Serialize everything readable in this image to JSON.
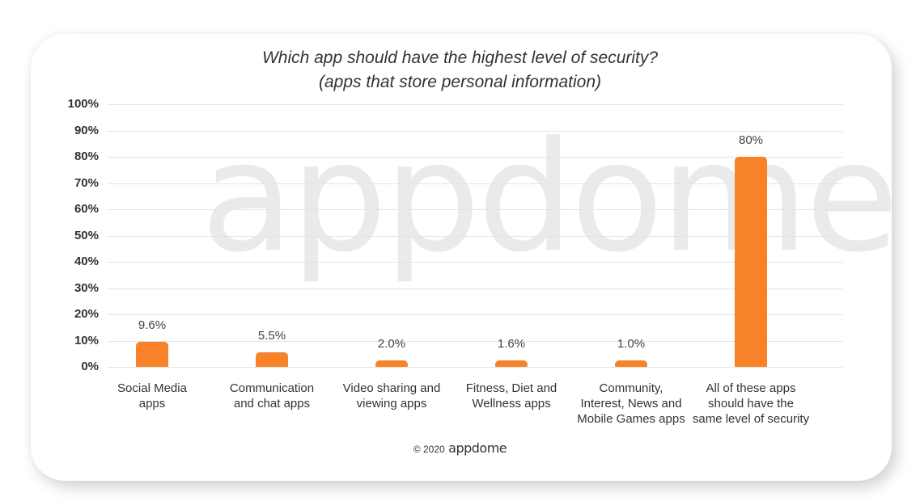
{
  "chart_data": {
    "type": "bar",
    "title": "Which app should have the highest level of security?",
    "subtitle": "(apps that store personal information)",
    "categories": [
      "Social Media apps",
      "Communication and chat apps",
      "Video sharing and viewing apps",
      "Fitness, Diet and Wellness apps",
      "Community, Interest, News and Mobile Games apps",
      "All of these apps should have the same level of security"
    ],
    "values": [
      9.6,
      5.5,
      2.0,
      1.6,
      1.0,
      80
    ],
    "value_labels": [
      "9.6%",
      "5.5%",
      "2.0%",
      "1.6%",
      "1.0%",
      "80%"
    ],
    "xlabel": "",
    "ylabel": "",
    "ylim": [
      0,
      100
    ],
    "yticks": [
      "0%",
      "10%",
      "20%",
      "30%",
      "40%",
      "50%",
      "60%",
      "70%",
      "80%",
      "90%",
      "100%"
    ],
    "grid": true,
    "legend": "none",
    "bar_color": "#f7822a"
  },
  "header": {
    "title_line1": "Which app should have the highest level of security?",
    "title_line2": "(apps that store personal information)"
  },
  "xlabels": [
    [
      "Social Media",
      "apps"
    ],
    [
      "Communication",
      "and chat apps"
    ],
    [
      "Video sharing and",
      "viewing apps"
    ],
    [
      "Fitness, Diet and",
      "Wellness apps"
    ],
    [
      "Community,",
      "Interest, News and",
      "Mobile Games apps"
    ],
    [
      "All of these apps",
      "should have the",
      "same level of security"
    ]
  ],
  "watermark": "appdome",
  "footer": {
    "copyright": "© 2020",
    "brand": "appdome"
  }
}
